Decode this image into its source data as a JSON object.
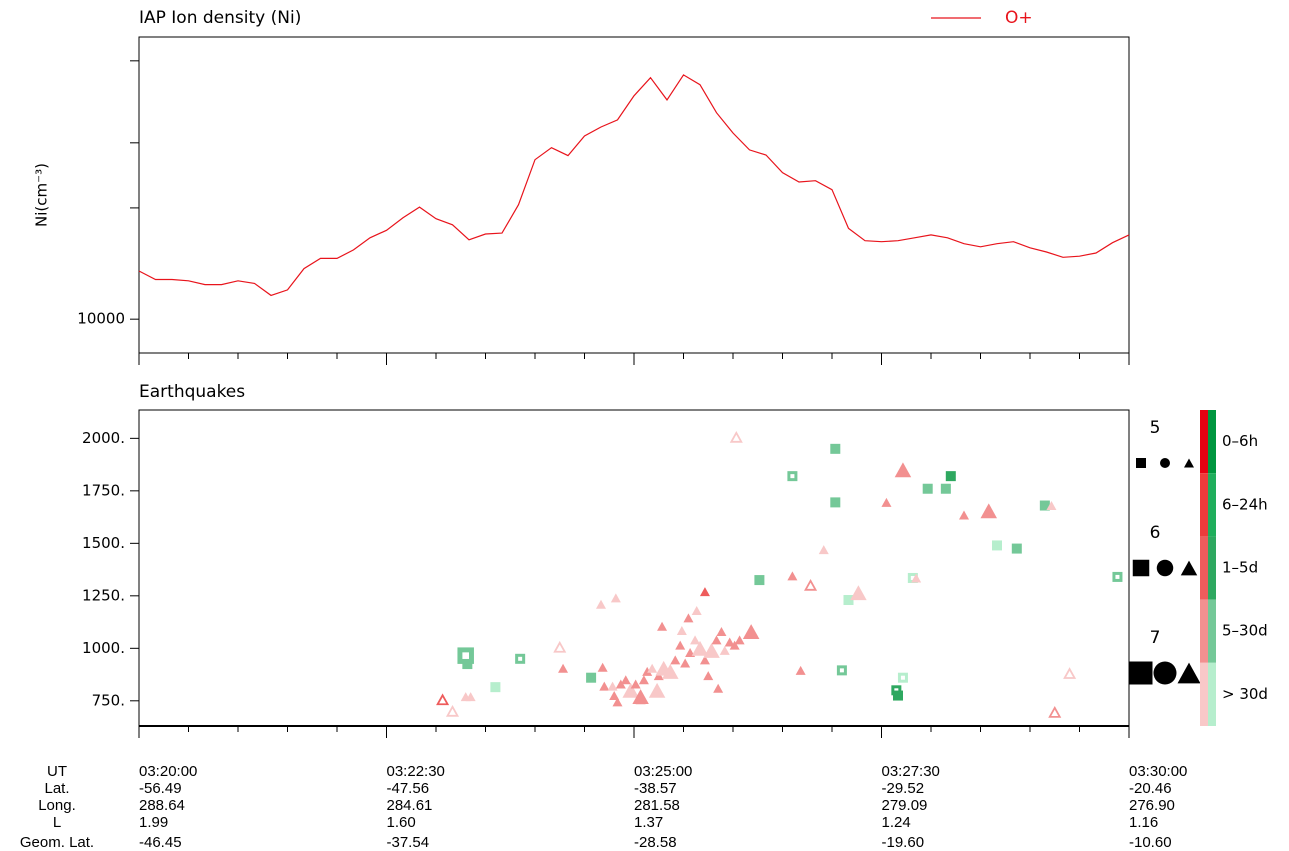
{
  "chart_data": [
    {
      "type": "line",
      "title": "IAP Ion density (Ni)",
      "ylabel": "Ni(cm⁻³)",
      "xlim": [
        "03:20:00",
        "03:30:00"
      ],
      "xticks": [
        "03:20:00",
        "03:22:30",
        "03:25:00",
        "03:27:30",
        "03:30:00"
      ],
      "x_minor_ticks": [
        "03:20:30",
        "03:21:00",
        "03:21:30",
        "03:22:00",
        "03:23:00",
        "03:23:30",
        "03:24:00",
        "03:24:30",
        "03:25:30",
        "03:26:00",
        "03:26:30",
        "03:27:00",
        "03:28:00",
        "03:28:30",
        "03:29:00",
        "03:29:30"
      ],
      "ylim": [
        8100,
        58000
      ],
      "log_y": true,
      "yticks": [
        10000
      ],
      "y_minor_ticks": [
        20000,
        30000,
        50000
      ],
      "x": [
        "03:20:00",
        "03:20:10",
        "03:20:20",
        "03:20:30",
        "03:20:40",
        "03:20:50",
        "03:21:00",
        "03:21:10",
        "03:21:20",
        "03:21:30",
        "03:21:40",
        "03:21:50",
        "03:22:00",
        "03:22:10",
        "03:22:20",
        "03:22:30",
        "03:22:40",
        "03:22:50",
        "03:23:00",
        "03:23:10",
        "03:23:20",
        "03:23:30",
        "03:23:40",
        "03:23:50",
        "03:24:00",
        "03:24:10",
        "03:24:20",
        "03:24:30",
        "03:24:40",
        "03:24:50",
        "03:25:00",
        "03:25:10",
        "03:25:20",
        "03:25:30",
        "03:25:40",
        "03:25:50",
        "03:26:00",
        "03:26:10",
        "03:26:20",
        "03:26:30",
        "03:26:40",
        "03:26:50",
        "03:27:00",
        "03:27:10",
        "03:27:20",
        "03:27:30",
        "03:27:40",
        "03:27:50",
        "03:28:00",
        "03:28:10",
        "03:28:20",
        "03:28:30",
        "03:28:40",
        "03:28:50",
        "03:29:00",
        "03:29:10",
        "03:29:20",
        "03:29:30",
        "03:29:40",
        "03:29:50",
        "03:30:00"
      ],
      "series": [
        {
          "name": "O+",
          "color": "#e8141c",
          "values": [
            13500,
            12800,
            12800,
            12700,
            12400,
            12400,
            12700,
            12500,
            11600,
            12000,
            13700,
            14600,
            14600,
            15400,
            16600,
            17400,
            18800,
            20100,
            18700,
            18000,
            16400,
            17000,
            17100,
            20400,
            27000,
            29100,
            27700,
            31300,
            33100,
            34600,
            40200,
            45000,
            39200,
            45800,
            43100,
            36200,
            31900,
            28700,
            27800,
            24900,
            23500,
            23700,
            22400,
            17600,
            16300,
            16200,
            16300,
            16600,
            16900,
            16600,
            16000,
            15700,
            16000,
            16200,
            15600,
            15200,
            14700,
            14800,
            15100,
            16100,
            16900
          ]
        }
      ]
    },
    {
      "type": "scatter",
      "title": "Earthquakes",
      "xlim": [
        "03:20:00",
        "03:30:00"
      ],
      "xticks": [
        "03:20:00",
        "03:22:30",
        "03:25:00",
        "03:27:30",
        "03:30:00"
      ],
      "x_minor_ticks": [
        "03:20:30",
        "03:21:00",
        "03:21:30",
        "03:22:00",
        "03:23:00",
        "03:23:30",
        "03:24:00",
        "03:24:30",
        "03:25:30",
        "03:26:00",
        "03:26:30",
        "03:27:00",
        "03:28:00",
        "03:28:30",
        "03:29:00",
        "03:29:30"
      ],
      "ylim": [
        630,
        2135
      ],
      "yticks": [
        {
          "value": 2000,
          "label": "2000."
        },
        {
          "value": 1750,
          "label": "1750."
        },
        {
          "value": 1500,
          "label": "1500."
        },
        {
          "value": 1250,
          "label": "1250."
        },
        {
          "value": 1000,
          "label": "1000."
        },
        {
          "value": 750,
          "label": "750."
        }
      ],
      "magnitude_legend": [
        5,
        6,
        7
      ],
      "shape_legend": [
        "square",
        "circle",
        "triangle"
      ],
      "color_scale": [
        {
          "label": "0–6h",
          "red": "#e60012",
          "green": "#00963f"
        },
        {
          "label": "6–24h",
          "red": "#ee3b3b",
          "green": "#1fae5c"
        },
        {
          "label": "1–5d",
          "red": "#ee5c5c",
          "green": "#2ea860"
        },
        {
          "label": "5–30d",
          "red": "#f29090",
          "green": "#74c898"
        },
        {
          "label": "> 30d",
          "red": "#f8c8c8",
          "green": "#b6eecd"
        }
      ],
      "points": [
        {
          "x": "03:23:04",
          "y": 755,
          "mag": 5,
          "shape": "triangle",
          "age": 2,
          "hollow": true
        },
        {
          "x": "03:23:10",
          "y": 700,
          "mag": 5,
          "shape": "triangle",
          "age": 4,
          "hollow": true
        },
        {
          "x": "03:23:18",
          "y": 770,
          "mag": 5,
          "shape": "triangle",
          "age": 4,
          "hollow": false
        },
        {
          "x": "03:23:21",
          "y": 770,
          "mag": 5,
          "shape": "triangle",
          "age": 4,
          "hollow": false
        },
        {
          "x": "03:23:18",
          "y": 965,
          "mag": 6,
          "shape": "square",
          "age": 3,
          "hollow": true
        },
        {
          "x": "03:23:19",
          "y": 925,
          "mag": 5,
          "shape": "square",
          "age": 3,
          "hollow": false
        },
        {
          "x": "03:23:51",
          "y": 950,
          "mag": 5,
          "shape": "square",
          "age": 3,
          "hollow": true
        },
        {
          "x": "03:23:36",
          "y": 815,
          "mag": 5,
          "shape": "square",
          "age": 4,
          "hollow": false
        },
        {
          "x": "03:24:15",
          "y": 1005,
          "mag": 5,
          "shape": "triangle",
          "age": 4,
          "hollow": true
        },
        {
          "x": "03:24:17",
          "y": 905,
          "mag": 5,
          "shape": "triangle",
          "age": 3,
          "hollow": false
        },
        {
          "x": "03:24:34",
          "y": 860,
          "mag": 5,
          "shape": "square",
          "age": 3,
          "hollow": false
        },
        {
          "x": "03:24:40",
          "y": 1210,
          "mag": 5,
          "shape": "triangle",
          "age": 4,
          "hollow": false
        },
        {
          "x": "03:24:49",
          "y": 1240,
          "mag": 5,
          "shape": "triangle",
          "age": 4,
          "hollow": false
        },
        {
          "x": "03:24:41",
          "y": 910,
          "mag": 5,
          "shape": "triangle",
          "age": 3,
          "hollow": false
        },
        {
          "x": "03:24:42",
          "y": 820,
          "mag": 5,
          "shape": "triangle",
          "age": 3,
          "hollow": false
        },
        {
          "x": "03:24:47",
          "y": 820,
          "mag": 5,
          "shape": "triangle",
          "age": 4,
          "hollow": false
        },
        {
          "x": "03:24:50",
          "y": 745,
          "mag": 5,
          "shape": "triangle",
          "age": 3,
          "hollow": false
        },
        {
          "x": "03:24:52",
          "y": 830,
          "mag": 5,
          "shape": "triangle",
          "age": 3,
          "hollow": false
        },
        {
          "x": "03:24:55",
          "y": 850,
          "mag": 5,
          "shape": "triangle",
          "age": 3,
          "hollow": false
        },
        {
          "x": "03:24:48",
          "y": 775,
          "mag": 5,
          "shape": "triangle",
          "age": 3,
          "hollow": false
        },
        {
          "x": "03:24:58",
          "y": 800,
          "mag": 6,
          "shape": "triangle",
          "age": 4,
          "hollow": false
        },
        {
          "x": "03:25:01",
          "y": 830,
          "mag": 5,
          "shape": "triangle",
          "age": 3,
          "hollow": false
        },
        {
          "x": "03:25:04",
          "y": 755,
          "mag": 5,
          "shape": "triangle",
          "age": 3,
          "hollow": false
        },
        {
          "x": "03:25:04",
          "y": 770,
          "mag": 6,
          "shape": "triangle",
          "age": 3,
          "hollow": false
        },
        {
          "x": "03:25:06",
          "y": 850,
          "mag": 5,
          "shape": "triangle",
          "age": 3,
          "hollow": false
        },
        {
          "x": "03:25:08",
          "y": 890,
          "mag": 5,
          "shape": "triangle",
          "age": 3,
          "hollow": false
        },
        {
          "x": "03:25:11",
          "y": 905,
          "mag": 5,
          "shape": "triangle",
          "age": 4,
          "hollow": false
        },
        {
          "x": "03:25:15",
          "y": 870,
          "mag": 5,
          "shape": "triangle",
          "age": 3,
          "hollow": false
        },
        {
          "x": "03:25:14",
          "y": 800,
          "mag": 6,
          "shape": "triangle",
          "age": 4,
          "hollow": false
        },
        {
          "x": "03:25:17",
          "y": 1105,
          "mag": 5,
          "shape": "triangle",
          "age": 3,
          "hollow": false
        },
        {
          "x": "03:25:18",
          "y": 905,
          "mag": 6,
          "shape": "triangle",
          "age": 4,
          "hollow": false
        },
        {
          "x": "03:25:22",
          "y": 890,
          "mag": 6,
          "shape": "triangle",
          "age": 4,
          "hollow": false
        },
        {
          "x": "03:25:25",
          "y": 945,
          "mag": 5,
          "shape": "triangle",
          "age": 3,
          "hollow": false
        },
        {
          "x": "03:25:28",
          "y": 1015,
          "mag": 5,
          "shape": "triangle",
          "age": 3,
          "hollow": false
        },
        {
          "x": "03:25:29",
          "y": 1085,
          "mag": 5,
          "shape": "triangle",
          "age": 4,
          "hollow": false
        },
        {
          "x": "03:25:31",
          "y": 930,
          "mag": 5,
          "shape": "triangle",
          "age": 3,
          "hollow": false
        },
        {
          "x": "03:25:33",
          "y": 1145,
          "mag": 5,
          "shape": "triangle",
          "age": 3,
          "hollow": false
        },
        {
          "x": "03:25:34",
          "y": 980,
          "mag": 5,
          "shape": "triangle",
          "age": 3,
          "hollow": false
        },
        {
          "x": "03:25:37",
          "y": 1040,
          "mag": 5,
          "shape": "triangle",
          "age": 4,
          "hollow": false
        },
        {
          "x": "03:25:38",
          "y": 1180,
          "mag": 5,
          "shape": "triangle",
          "age": 4,
          "hollow": false
        },
        {
          "x": "03:25:40",
          "y": 1000,
          "mag": 6,
          "shape": "triangle",
          "age": 4,
          "hollow": false
        },
        {
          "x": "03:25:43",
          "y": 945,
          "mag": 5,
          "shape": "triangle",
          "age": 3,
          "hollow": false
        },
        {
          "x": "03:25:43",
          "y": 1270,
          "mag": 5,
          "shape": "triangle",
          "age": 2,
          "hollow": false
        },
        {
          "x": "03:25:45",
          "y": 870,
          "mag": 5,
          "shape": "triangle",
          "age": 3,
          "hollow": false
        },
        {
          "x": "03:25:47",
          "y": 990,
          "mag": 6,
          "shape": "triangle",
          "age": 4,
          "hollow": false
        },
        {
          "x": "03:25:50",
          "y": 1040,
          "mag": 5,
          "shape": "triangle",
          "age": 3,
          "hollow": false
        },
        {
          "x": "03:25:51",
          "y": 810,
          "mag": 5,
          "shape": "triangle",
          "age": 3,
          "hollow": false
        },
        {
          "x": "03:25:53",
          "y": 1080,
          "mag": 5,
          "shape": "triangle",
          "age": 3,
          "hollow": false
        },
        {
          "x": "03:25:55",
          "y": 990,
          "mag": 5,
          "shape": "triangle",
          "age": 4,
          "hollow": false
        },
        {
          "x": "03:25:58",
          "y": 1030,
          "mag": 5,
          "shape": "triangle",
          "age": 3,
          "hollow": false
        },
        {
          "x": "03:26:01",
          "y": 1015,
          "mag": 5,
          "shape": "triangle",
          "age": 3,
          "hollow": false
        },
        {
          "x": "03:26:04",
          "y": 1040,
          "mag": 5,
          "shape": "triangle",
          "age": 3,
          "hollow": false
        },
        {
          "x": "03:26:11",
          "y": 1080,
          "mag": 6,
          "shape": "triangle",
          "age": 3,
          "hollow": false
        },
        {
          "x": "03:26:02",
          "y": 2005,
          "mag": 5,
          "shape": "triangle",
          "age": 4,
          "hollow": true
        },
        {
          "x": "03:26:16",
          "y": 1325,
          "mag": 5,
          "shape": "square",
          "age": 3,
          "hollow": false
        },
        {
          "x": "03:26:36",
          "y": 1820,
          "mag": 5,
          "shape": "square",
          "age": 3,
          "hollow": true
        },
        {
          "x": "03:26:36",
          "y": 1345,
          "mag": 5,
          "shape": "triangle",
          "age": 3,
          "hollow": false
        },
        {
          "x": "03:26:47",
          "y": 1300,
          "mag": 5,
          "shape": "triangle",
          "age": 3,
          "hollow": true
        },
        {
          "x": "03:26:55",
          "y": 1470,
          "mag": 5,
          "shape": "triangle",
          "age": 4,
          "hollow": false
        },
        {
          "x": "03:27:02",
          "y": 1950,
          "mag": 5,
          "shape": "square",
          "age": 3,
          "hollow": false
        },
        {
          "x": "03:27:02",
          "y": 1695,
          "mag": 5,
          "shape": "square",
          "age": 3,
          "hollow": false
        },
        {
          "x": "03:27:10",
          "y": 1230,
          "mag": 5,
          "shape": "square",
          "age": 4,
          "hollow": false
        },
        {
          "x": "03:27:16",
          "y": 1265,
          "mag": 6,
          "shape": "triangle",
          "age": 4,
          "hollow": false
        },
        {
          "x": "03:27:06",
          "y": 895,
          "mag": 5,
          "shape": "square",
          "age": 3,
          "hollow": true
        },
        {
          "x": "03:26:41",
          "y": 895,
          "mag": 5,
          "shape": "triangle",
          "age": 3,
          "hollow": false
        },
        {
          "x": "03:27:33",
          "y": 1695,
          "mag": 5,
          "shape": "triangle",
          "age": 3,
          "hollow": false
        },
        {
          "x": "03:27:43",
          "y": 1850,
          "mag": 6,
          "shape": "triangle",
          "age": 3,
          "hollow": false
        },
        {
          "x": "03:27:39",
          "y": 800,
          "mag": 5,
          "shape": "square",
          "age": 2,
          "hollow": true
        },
        {
          "x": "03:27:40",
          "y": 775,
          "mag": 5,
          "shape": "square",
          "age": 2,
          "hollow": false
        },
        {
          "x": "03:27:43",
          "y": 860,
          "mag": 5,
          "shape": "square",
          "age": 4,
          "hollow": true
        },
        {
          "x": "03:27:49",
          "y": 1335,
          "mag": 5,
          "shape": "square",
          "age": 4,
          "hollow": true
        },
        {
          "x": "03:27:51",
          "y": 1335,
          "mag": 5,
          "shape": "triangle",
          "age": 4,
          "hollow": false
        },
        {
          "x": "03:27:58",
          "y": 1760,
          "mag": 5,
          "shape": "square",
          "age": 3,
          "hollow": false
        },
        {
          "x": "03:28:09",
          "y": 1760,
          "mag": 5,
          "shape": "square",
          "age": 3,
          "hollow": false
        },
        {
          "x": "03:28:12",
          "y": 1820,
          "mag": 5,
          "shape": "square",
          "age": 2,
          "hollow": false
        },
        {
          "x": "03:28:20",
          "y": 1635,
          "mag": 5,
          "shape": "triangle",
          "age": 3,
          "hollow": false
        },
        {
          "x": "03:28:35",
          "y": 1655,
          "mag": 6,
          "shape": "triangle",
          "age": 3,
          "hollow": false
        },
        {
          "x": "03:28:40",
          "y": 1490,
          "mag": 5,
          "shape": "square",
          "age": 4,
          "hollow": false
        },
        {
          "x": "03:28:52",
          "y": 1475,
          "mag": 5,
          "shape": "square",
          "age": 3,
          "hollow": false
        },
        {
          "x": "03:29:09",
          "y": 1680,
          "mag": 5,
          "shape": "square",
          "age": 3,
          "hollow": false
        },
        {
          "x": "03:29:13",
          "y": 1680,
          "mag": 5,
          "shape": "triangle",
          "age": 4,
          "hollow": false
        },
        {
          "x": "03:29:15",
          "y": 695,
          "mag": 5,
          "shape": "triangle",
          "age": 3,
          "hollow": true
        },
        {
          "x": "03:29:24",
          "y": 880,
          "mag": 5,
          "shape": "triangle",
          "age": 4,
          "hollow": true
        },
        {
          "x": "03:29:53",
          "y": 1340,
          "mag": 5,
          "shape": "square",
          "age": 3,
          "hollow": true
        }
      ]
    }
  ],
  "orbit_table": {
    "ut_label": "UT",
    "rows": [
      {
        "label": "Lat.",
        "values": [
          "-56.49",
          "-47.56",
          "-38.57",
          "-29.52",
          "-20.46"
        ]
      },
      {
        "label": "Long.",
        "values": [
          "288.64",
          "284.61",
          "281.58",
          "279.09",
          "276.90"
        ]
      },
      {
        "label": "L",
        "values": [
          "1.99",
          "1.60",
          "1.37",
          "1.24",
          "1.16"
        ]
      },
      {
        "label": "Geom. Lat.",
        "values": [
          "-46.45",
          "-37.54",
          "-28.58",
          "-19.60",
          "-10.60"
        ]
      }
    ]
  }
}
